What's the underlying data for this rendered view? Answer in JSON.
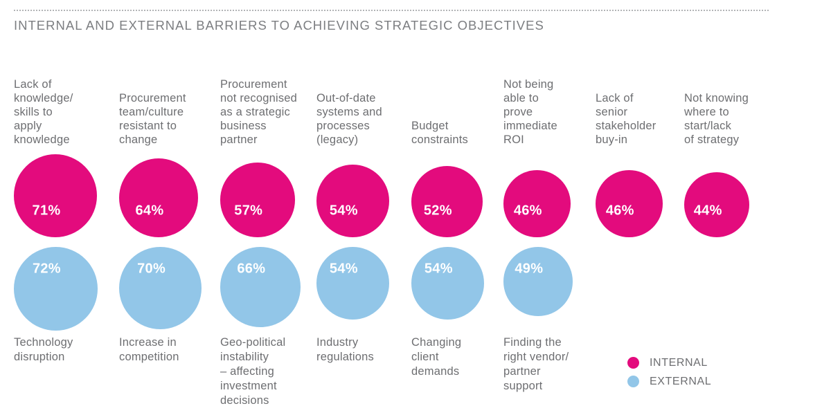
{
  "title": "INTERNAL AND EXTERNAL BARRIERS TO ACHIEVING STRATEGIC OBJECTIVES",
  "legend": [
    {
      "label": "INTERNAL",
      "color": "#e30b7d"
    },
    {
      "label": "EXTERNAL",
      "color": "#92c6e8"
    }
  ],
  "chart_data": {
    "type": "bubble",
    "title": "INTERNAL AND EXTERNAL BARRIERS TO ACHIEVING STRATEGIC OBJECTIVES",
    "unit": "%",
    "colors": {
      "internal": "#e30b7d",
      "external": "#92c6e8"
    },
    "series": [
      {
        "name": "INTERNAL",
        "items": [
          {
            "label_lines": [
              "Lack of",
              "knowledge/",
              "skills to",
              "apply",
              "knowledge"
            ],
            "value": 71
          },
          {
            "label_lines": [
              "Procurement",
              "team/culture",
              "resistant to",
              "change"
            ],
            "value": 64
          },
          {
            "label_lines": [
              "Procurement",
              "not recognised",
              "as a strategic",
              "business",
              "partner"
            ],
            "value": 57
          },
          {
            "label_lines": [
              "Out-of-date",
              "systems and",
              "processes",
              "(legacy)"
            ],
            "value": 54
          },
          {
            "label_lines": [
              "Budget",
              "constraints"
            ],
            "value": 52
          },
          {
            "label_lines": [
              "Not being",
              "able to",
              "prove",
              "immediate",
              "ROI"
            ],
            "value": 46
          },
          {
            "label_lines": [
              "Lack of",
              "senior",
              "stakeholder",
              "buy-in"
            ],
            "value": 46
          },
          {
            "label_lines": [
              "Not knowing",
              "where to",
              "start/lack",
              "of strategy"
            ],
            "value": 44
          }
        ]
      },
      {
        "name": "EXTERNAL",
        "items": [
          {
            "label_lines": [
              "Technology",
              "disruption"
            ],
            "value": 72
          },
          {
            "label_lines": [
              "Increase in",
              "competition"
            ],
            "value": 70
          },
          {
            "label_lines": [
              "Geo-political",
              "instability",
              "– affecting",
              "investment",
              "decisions"
            ],
            "value": 66
          },
          {
            "label_lines": [
              "Industry",
              "regulations"
            ],
            "value": 54
          },
          {
            "label_lines": [
              "Changing",
              "client",
              "demands"
            ],
            "value": 54
          },
          {
            "label_lines": [
              "Finding the",
              "right vendor/",
              "partner",
              "support"
            ],
            "value": 49
          }
        ]
      }
    ]
  }
}
